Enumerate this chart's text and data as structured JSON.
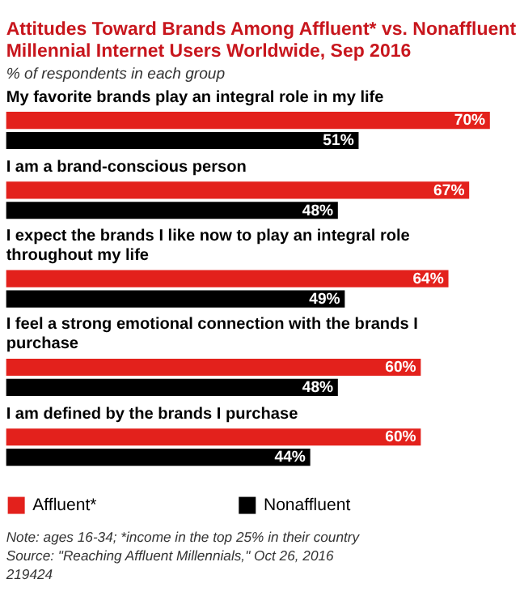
{
  "chart_data": {
    "type": "bar",
    "orientation": "horizontal",
    "title": "Attitudes Toward Brands Among Affluent* vs. Nonaffluent Millennial Internet Users Worldwide, Sep 2016",
    "subtitle": "% of respondents in each group",
    "categories": [
      "My favorite brands play an integral role in my life",
      "I am a brand-conscious person",
      "I expect the brands I like now to play an integral role throughout my life",
      "I feel a strong emotional connection with the brands I purchase",
      "I am defined by the brands I purchase"
    ],
    "series": [
      {
        "name": "Affluent*",
        "color": "#e3211c",
        "values": [
          70,
          67,
          64,
          60,
          60
        ],
        "value_labels": [
          "70%",
          "67%",
          "64%",
          "60%",
          "60%"
        ]
      },
      {
        "name": "Nonaffluent",
        "color": "#000000",
        "values": [
          51,
          48,
          49,
          48,
          44
        ],
        "value_labels": [
          "51%",
          "48%",
          "49%",
          "48%",
          "44%"
        ]
      }
    ],
    "legend": "bottom",
    "annotations": [
      "Note: ages 16-34; *income in the top 25% in their country",
      "Source: \"Reaching Affluent Millennials,\" Oct 26, 2016",
      "219424"
    ]
  }
}
